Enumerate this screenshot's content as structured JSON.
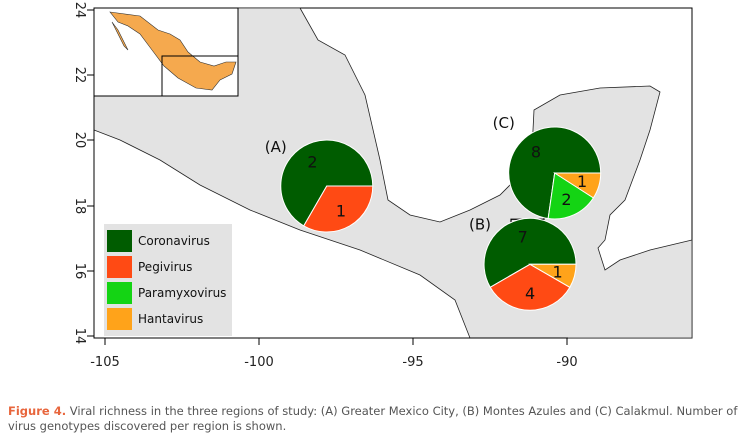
{
  "chart_data": {
    "type": "pie",
    "xlim": [
      -105,
      -84
    ],
    "ylim": [
      14,
      24
    ],
    "x_ticks": [
      "-105",
      "-100",
      "-95",
      "-90"
    ],
    "y_ticks": [
      "14",
      "16",
      "18",
      "20",
      "22",
      "24"
    ],
    "legend": {
      "placement": "bottom-left",
      "entries": [
        {
          "name": "Coronavirus",
          "color": "#005c00"
        },
        {
          "name": "Pegivirus",
          "color": "#ff4a14"
        },
        {
          "name": "Paramyxovirus",
          "color": "#14d414"
        },
        {
          "name": "Hantavirus",
          "color": "#ffa31a"
        }
      ]
    },
    "pies": [
      {
        "label": "(A)",
        "center_lon": -97.8,
        "center_lat": 18.6,
        "slices": [
          {
            "name": "Coronavirus",
            "value": 2
          },
          {
            "name": "Pegivirus",
            "value": 1
          }
        ]
      },
      {
        "label": "(B)",
        "center_lon": -91.2,
        "center_lat": 16.2,
        "slices": [
          {
            "name": "Coronavirus",
            "value": 7
          },
          {
            "name": "Pegivirus",
            "value": 4
          },
          {
            "name": "Hantavirus",
            "value": 1
          }
        ]
      },
      {
        "label": "(C)",
        "center_lon": -90.4,
        "center_lat": 19.0,
        "slices": [
          {
            "name": "Coronavirus",
            "value": 8
          },
          {
            "name": "Paramyxovirus",
            "value": 2
          },
          {
            "name": "Hantavirus",
            "value": 1
          }
        ]
      }
    ]
  },
  "caption": {
    "figure_number": "Figure 4.",
    "text": " Viral richness in the three regions of study: (A) Greater Mexico City, (B) Montes Azules and (C) Calakmul. Number of virus genotypes discovered per region is shown."
  },
  "colors": {
    "land": "#e3e3e3",
    "inset_land": "#f5a94e",
    "caption_accent": "#e8663d"
  }
}
